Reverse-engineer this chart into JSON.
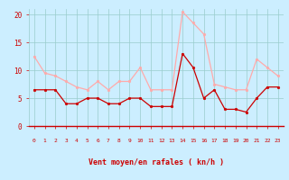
{
  "x": [
    0,
    1,
    2,
    3,
    4,
    5,
    6,
    7,
    8,
    9,
    10,
    11,
    12,
    13,
    14,
    15,
    16,
    17,
    18,
    19,
    20,
    21,
    22,
    23
  ],
  "wind_avg": [
    6.5,
    6.5,
    6.5,
    4.0,
    4.0,
    5.0,
    5.0,
    4.0,
    4.0,
    5.0,
    5.0,
    3.5,
    3.5,
    3.5,
    13.0,
    10.5,
    5.0,
    6.5,
    3.0,
    3.0,
    2.5,
    5.0,
    7.0,
    7.0
  ],
  "wind_gust": [
    12.5,
    9.5,
    9.0,
    8.0,
    7.0,
    6.5,
    8.0,
    6.5,
    8.0,
    8.0,
    10.5,
    6.5,
    6.5,
    6.5,
    20.5,
    18.5,
    16.5,
    7.5,
    7.0,
    6.5,
    6.5,
    12.0,
    10.5,
    9.0
  ],
  "arrows": [
    "←",
    "←",
    "←",
    "←",
    "↙",
    "↙",
    "←",
    "←",
    "↖",
    "←",
    "←",
    "←",
    "←",
    "↗",
    "↑",
    "↑",
    "↑",
    "↖",
    "↖",
    "↙",
    "↘",
    "↘",
    "→",
    "→"
  ],
  "color_avg": "#cc0000",
  "color_gust": "#ffaaaa",
  "bg_color": "#cceeff",
  "grid_color": "#99cccc",
  "xlabel": "Vent moyen/en rafales ( kn/h )",
  "xlabel_color": "#cc0000",
  "tick_color": "#cc0000",
  "ylim": [
    0,
    21
  ],
  "yticks": [
    0,
    5,
    10,
    15,
    20
  ],
  "xlim": [
    -0.5,
    23.5
  ]
}
